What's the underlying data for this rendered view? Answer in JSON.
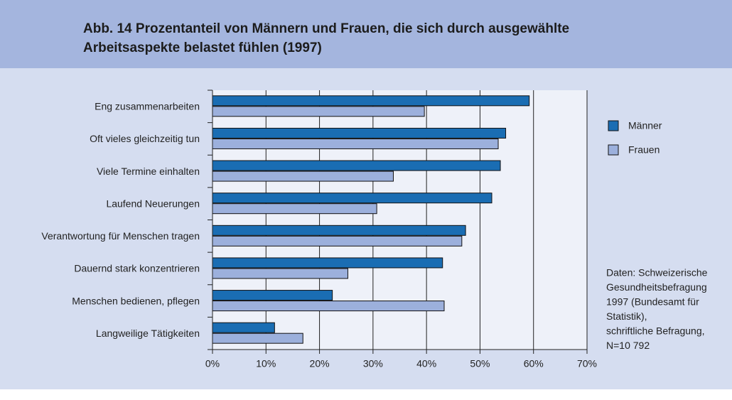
{
  "chart_data": {
    "type": "hbar",
    "title_lines": [
      "Abb. 14  Prozentanteil von Männern und Frauen, die sich durch ausgewählte",
      "Arbeitsaspekte belastet fühlen (1997)"
    ],
    "categories": [
      "Eng  zusammenarbeiten",
      "Oft vieles gleichzeitig tun",
      "Viele Termine einhalten",
      "Laufend Neuerungen",
      "Verantwortung für Menschen tragen",
      "Dauernd stark konzentrieren",
      "Menschen bedienen, pflegen",
      "Langweilige Tätigkeiten"
    ],
    "series": [
      {
        "name": "Männer",
        "color": "#1a6db3",
        "values": [
          59.2,
          54.8,
          53.8,
          52.2,
          47.3,
          43.0,
          22.4,
          11.6
        ]
      },
      {
        "name": "Frauen",
        "color": "#9cb0dc",
        "values": [
          39.6,
          53.4,
          33.8,
          30.7,
          46.6,
          25.3,
          43.3,
          16.9
        ]
      }
    ],
    "xlim": [
      0,
      70
    ],
    "xticks": [
      {
        "value": 0,
        "label": "0%"
      },
      {
        "value": 10,
        "label": "10%"
      },
      {
        "value": 20,
        "label": "20%"
      },
      {
        "value": 30,
        "label": "30%"
      },
      {
        "value": 40,
        "label": "40%"
      },
      {
        "value": 50,
        "label": "50%"
      },
      {
        "value": 60,
        "label": "60%"
      },
      {
        "value": 70,
        "label": "70%"
      }
    ],
    "grid": true,
    "note_lines": [
      "Daten: Schweizerische",
      "Gesundheitsbefragung",
      "1997 (Bundesamt für",
      "Statistik),",
      "schriftliche Befragung,",
      "N=10 792"
    ]
  }
}
